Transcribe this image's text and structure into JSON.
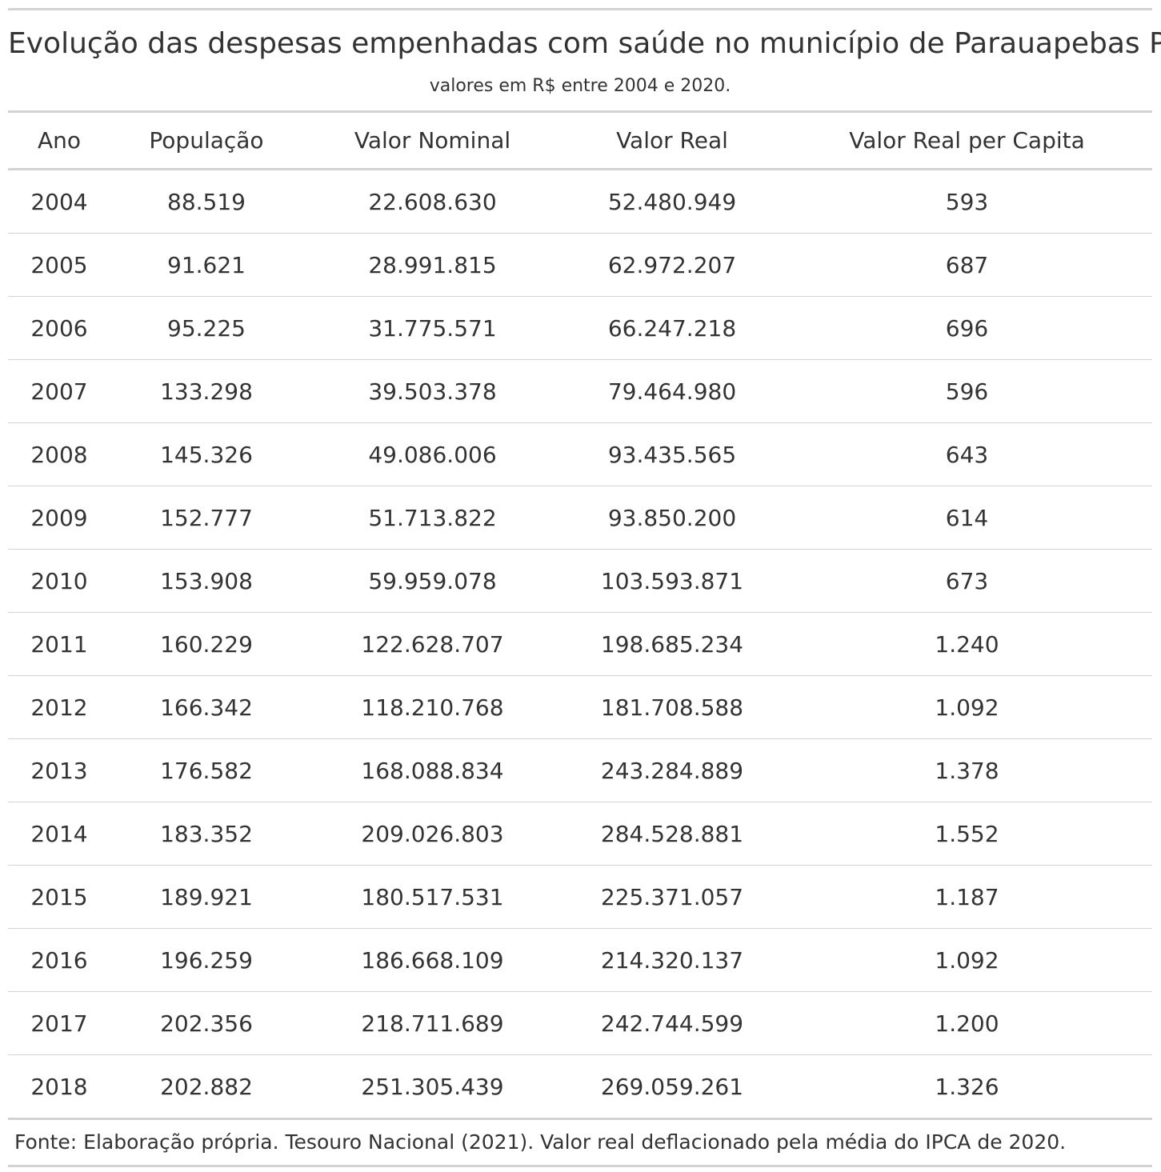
{
  "title": "Evolução das despesas empenhadas com saúde no município de Parauapebas PA",
  "subtitle": "valores em R$ entre 2004 e 2020.",
  "columns": [
    "Ano",
    "População",
    "Valor Nominal",
    "Valor Real",
    "Valor Real per Capita"
  ],
  "rows": [
    [
      "2004",
      "88.519",
      "22.608.630",
      "52.480.949",
      "593"
    ],
    [
      "2005",
      "91.621",
      "28.991.815",
      "62.972.207",
      "687"
    ],
    [
      "2006",
      "95.225",
      "31.775.571",
      "66.247.218",
      "696"
    ],
    [
      "2007",
      "133.298",
      "39.503.378",
      "79.464.980",
      "596"
    ],
    [
      "2008",
      "145.326",
      "49.086.006",
      "93.435.565",
      "643"
    ],
    [
      "2009",
      "152.777",
      "51.713.822",
      "93.850.200",
      "614"
    ],
    [
      "2010",
      "153.908",
      "59.959.078",
      "103.593.871",
      "673"
    ],
    [
      "2011",
      "160.229",
      "122.628.707",
      "198.685.234",
      "1.240"
    ],
    [
      "2012",
      "166.342",
      "118.210.768",
      "181.708.588",
      "1.092"
    ],
    [
      "2013",
      "176.582",
      "168.088.834",
      "243.284.889",
      "1.378"
    ],
    [
      "2014",
      "183.352",
      "209.026.803",
      "284.528.881",
      "1.552"
    ],
    [
      "2015",
      "189.921",
      "180.517.531",
      "225.371.057",
      "1.187"
    ],
    [
      "2016",
      "196.259",
      "186.668.109",
      "214.320.137",
      "1.092"
    ],
    [
      "2017",
      "202.356",
      "218.711.689",
      "242.744.599",
      "1.200"
    ],
    [
      "2018",
      "202.882",
      "251.305.439",
      "269.059.261",
      "1.326"
    ]
  ],
  "source_note": "Fonte: Elaboração própria. Tesouro Nacional (2021). Valor real deflacionado pela média do IPCA de 2020.",
  "colors": {
    "text": "#333333",
    "rule": "#d3d3d3",
    "background": "#ffffff"
  }
}
